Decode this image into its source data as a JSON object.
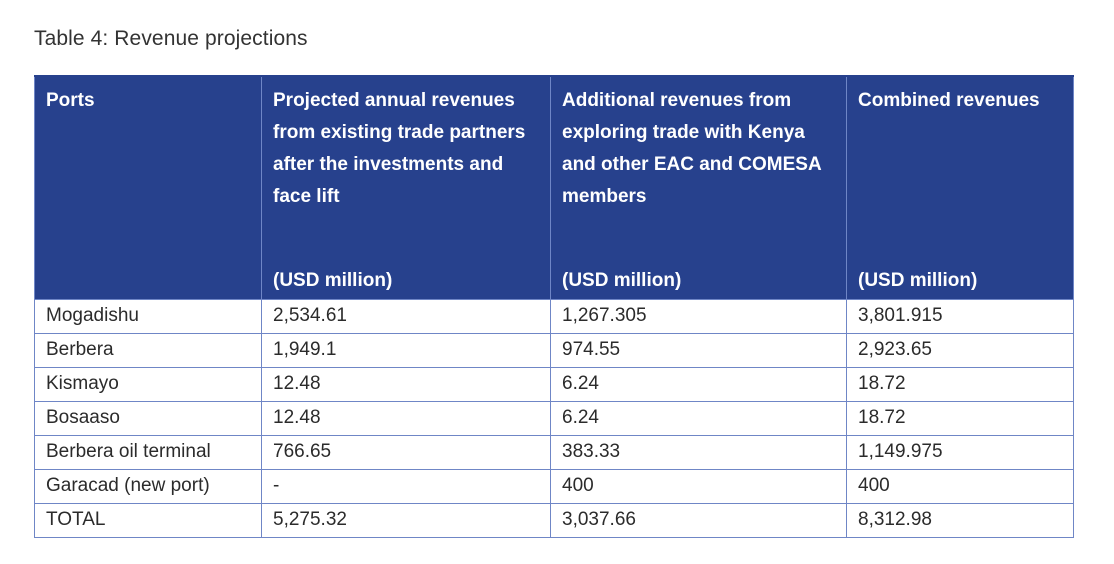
{
  "caption": "Table 4: Revenue projections",
  "table": {
    "headers": [
      {
        "label": "Ports",
        "unit": ""
      },
      {
        "label": "Projected annual revenues from existing trade partners after the investments and face lift",
        "unit": "(USD million)"
      },
      {
        "label": "Additional revenues from exploring trade with Kenya and other EAC and COMESA members",
        "unit": "(USD million)"
      },
      {
        "label": "Combined revenues",
        "unit": "(USD million)"
      }
    ],
    "rows": [
      [
        "Mogadishu",
        "2,534.61",
        "1,267.305",
        "3,801.915"
      ],
      [
        "Berbera",
        "1,949.1",
        "974.55",
        "2,923.65"
      ],
      [
        "Kismayo",
        "12.48",
        "6.24",
        "18.72"
      ],
      [
        "Bosaaso",
        "12.48",
        "6.24",
        "18.72"
      ],
      [
        "Berbera oil terminal",
        "766.65",
        "383.33",
        "1,149.975"
      ],
      [
        "Garacad (new port)",
        "-",
        "400",
        "400"
      ],
      [
        "TOTAL",
        "5,275.32",
        "3,037.66",
        "8,312.98"
      ]
    ]
  },
  "colors": {
    "header_bg": "#27418d",
    "header_text": "#ffffff",
    "border": "#6f86c6"
  }
}
